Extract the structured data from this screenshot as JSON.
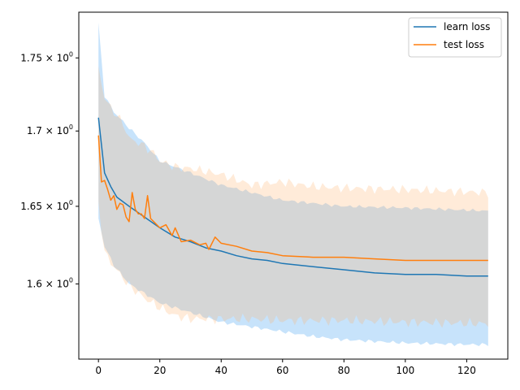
{
  "chart_data": {
    "type": "line",
    "title": "",
    "xlabel": "",
    "ylabel": "",
    "yscale": "log",
    "xlim": [
      -6.4,
      133.4
    ],
    "ylim": [
      1.553,
      1.782
    ],
    "xticks": [
      0,
      20,
      40,
      60,
      80,
      100,
      120
    ],
    "xtick_labels": [
      "0",
      "20",
      "40",
      "60",
      "80",
      "100",
      "120"
    ],
    "yticks": [
      1.6,
      1.65,
      1.7,
      1.75
    ],
    "ytick_labels": [
      {
        "base": "1.6 × 10",
        "exp": "0"
      },
      {
        "base": "1.65 × 10",
        "exp": "0"
      },
      {
        "base": "1.7 × 10",
        "exp": "0"
      },
      {
        "base": "1.75 × 10",
        "exp": "0"
      }
    ],
    "legend": {
      "placement": "top-right",
      "entries": [
        "learn loss",
        "test loss"
      ]
    },
    "series": [
      {
        "name": "learn loss",
        "color": "#1f77b4",
        "band_color": "#1f8ef1",
        "points": [
          [
            0,
            1.709
          ],
          [
            2,
            1.672
          ],
          [
            4,
            1.663
          ],
          [
            6,
            1.656
          ],
          [
            10,
            1.65
          ],
          [
            15,
            1.643
          ],
          [
            20,
            1.636
          ],
          [
            25,
            1.63
          ],
          [
            30,
            1.627
          ],
          [
            35,
            1.623
          ],
          [
            40,
            1.621
          ],
          [
            45,
            1.618
          ],
          [
            50,
            1.616
          ],
          [
            55,
            1.615
          ],
          [
            60,
            1.613
          ],
          [
            70,
            1.611
          ],
          [
            80,
            1.609
          ],
          [
            90,
            1.607
          ],
          [
            100,
            1.606
          ],
          [
            110,
            1.606
          ],
          [
            120,
            1.605
          ],
          [
            127,
            1.605
          ]
        ],
        "band_upper": [
          [
            0,
            1.774
          ],
          [
            2,
            1.724
          ],
          [
            5,
            1.713
          ],
          [
            10,
            1.702
          ],
          [
            15,
            1.692
          ],
          [
            20,
            1.68
          ],
          [
            30,
            1.672
          ],
          [
            40,
            1.664
          ],
          [
            50,
            1.659
          ],
          [
            60,
            1.654
          ],
          [
            70,
            1.652
          ],
          [
            80,
            1.65
          ],
          [
            100,
            1.649
          ],
          [
            127,
            1.647
          ]
        ],
        "band_lower": [
          [
            0,
            1.642
          ],
          [
            2,
            1.624
          ],
          [
            5,
            1.612
          ],
          [
            10,
            1.6
          ],
          [
            15,
            1.594
          ],
          [
            20,
            1.588
          ],
          [
            30,
            1.582
          ],
          [
            40,
            1.576
          ],
          [
            50,
            1.573
          ],
          [
            60,
            1.57
          ],
          [
            70,
            1.567
          ],
          [
            80,
            1.565
          ],
          [
            100,
            1.563
          ],
          [
            120,
            1.562
          ],
          [
            127,
            1.562
          ]
        ]
      },
      {
        "name": "test loss",
        "color": "#ff7f0e",
        "band_color": "#ffb066",
        "points": [
          [
            0,
            1.697
          ],
          [
            1,
            1.666
          ],
          [
            2,
            1.667
          ],
          [
            3,
            1.661
          ],
          [
            4,
            1.654
          ],
          [
            5,
            1.657
          ],
          [
            6,
            1.648
          ],
          [
            7,
            1.652
          ],
          [
            8,
            1.651
          ],
          [
            9,
            1.643
          ],
          [
            10,
            1.64
          ],
          [
            11,
            1.659
          ],
          [
            12,
            1.648
          ],
          [
            13,
            1.645
          ],
          [
            14,
            1.645
          ],
          [
            15,
            1.642
          ],
          [
            16,
            1.657
          ],
          [
            17,
            1.642
          ],
          [
            18,
            1.64
          ],
          [
            20,
            1.636
          ],
          [
            22,
            1.638
          ],
          [
            24,
            1.631
          ],
          [
            25,
            1.636
          ],
          [
            27,
            1.627
          ],
          [
            30,
            1.628
          ],
          [
            33,
            1.625
          ],
          [
            35,
            1.626
          ],
          [
            36,
            1.622
          ],
          [
            38,
            1.63
          ],
          [
            40,
            1.626
          ],
          [
            45,
            1.624
          ],
          [
            50,
            1.621
          ],
          [
            55,
            1.62
          ],
          [
            60,
            1.618
          ],
          [
            70,
            1.617
          ],
          [
            80,
            1.617
          ],
          [
            90,
            1.616
          ],
          [
            100,
            1.615
          ],
          [
            110,
            1.615
          ],
          [
            120,
            1.615
          ],
          [
            127,
            1.615
          ]
        ],
        "band_upper": [
          [
            0,
            1.744
          ],
          [
            2,
            1.722
          ],
          [
            5,
            1.713
          ],
          [
            8,
            1.705
          ],
          [
            10,
            1.695
          ],
          [
            15,
            1.69
          ],
          [
            18,
            1.685
          ],
          [
            20,
            1.68
          ],
          [
            25,
            1.676
          ],
          [
            30,
            1.675
          ],
          [
            40,
            1.671
          ],
          [
            50,
            1.664
          ],
          [
            60,
            1.666
          ],
          [
            70,
            1.663
          ],
          [
            80,
            1.662
          ],
          [
            100,
            1.661
          ],
          [
            127,
            1.659
          ]
        ],
        "band_lower": [
          [
            0,
            1.652
          ],
          [
            2,
            1.62
          ],
          [
            5,
            1.611
          ],
          [
            10,
            1.599
          ],
          [
            15,
            1.591
          ],
          [
            20,
            1.585
          ],
          [
            25,
            1.58
          ],
          [
            30,
            1.578
          ],
          [
            40,
            1.578
          ],
          [
            50,
            1.578
          ],
          [
            60,
            1.577
          ],
          [
            70,
            1.577
          ],
          [
            80,
            1.577
          ],
          [
            100,
            1.576
          ],
          [
            127,
            1.575
          ]
        ]
      }
    ]
  }
}
